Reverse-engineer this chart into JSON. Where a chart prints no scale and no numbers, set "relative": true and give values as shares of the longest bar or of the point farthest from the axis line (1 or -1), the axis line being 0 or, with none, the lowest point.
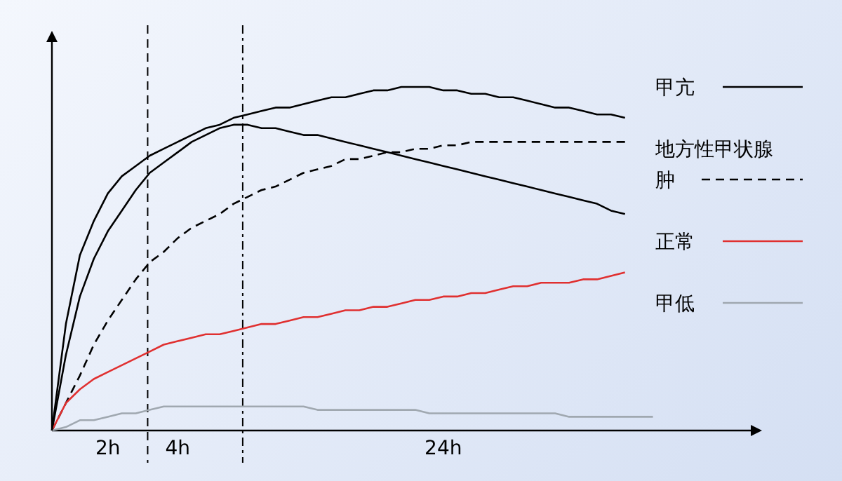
{
  "chart_data": {
    "type": "line",
    "relative": true,
    "categories": [
      null,
      null,
      null,
      null,
      "2h",
      null,
      null,
      null,
      null,
      "4h",
      null,
      null,
      null,
      null,
      null,
      null,
      null,
      null,
      null,
      null,
      null,
      null,
      null,
      null,
      null,
      null,
      null,
      null,
      "24h",
      null,
      null,
      null,
      null,
      null,
      null,
      null,
      null,
      null,
      null,
      null,
      null,
      null,
      null,
      null,
      null,
      null,
      null,
      null,
      null,
      null,
      null
    ],
    "legend": "right",
    "series": [
      {
        "name": "甲亢",
        "color": "#000000",
        "line_style": "solid",
        "values": [
          0,
          0.22,
          0.39,
          0.5,
          0.58,
          0.64,
          0.7,
          0.75,
          0.78,
          0.81,
          0.84,
          0.86,
          0.88,
          0.89,
          0.89,
          0.88,
          0.88,
          0.87,
          0.86,
          0.86,
          0.85,
          0.84,
          0.83,
          0.82,
          0.81,
          0.8,
          0.79,
          0.78,
          0.77,
          0.76,
          0.75,
          0.74,
          0.73,
          0.72,
          0.71,
          0.7,
          0.69,
          0.68,
          0.67,
          0.66,
          0.64,
          0.63,
          null,
          null,
          null,
          null,
          null,
          null,
          null,
          null,
          null
        ]
      },
      {
        "name": "地方性甲状腺肿",
        "color": "#000000",
        "line_style": "dashed",
        "values": [
          0,
          0.08,
          0.16,
          0.25,
          0.32,
          0.38,
          0.44,
          0.49,
          0.52,
          0.56,
          0.59,
          0.61,
          0.63,
          0.66,
          0.68,
          0.7,
          0.71,
          0.73,
          0.75,
          0.76,
          0.77,
          0.79,
          0.79,
          0.8,
          0.81,
          0.81,
          0.82,
          0.82,
          0.83,
          0.83,
          0.84,
          0.84,
          0.84,
          0.84,
          0.84,
          0.84,
          0.84,
          0.84,
          0.84,
          0.84,
          0.84,
          0.84,
          null,
          null,
          null,
          null,
          null,
          null,
          null,
          null,
          null
        ]
      },
      {
        "name": "正常",
        "color": "#e03030",
        "line_style": "solid",
        "values": [
          0,
          0.08,
          0.12,
          0.15,
          0.17,
          0.19,
          0.21,
          0.23,
          0.25,
          0.26,
          0.27,
          0.28,
          0.28,
          0.29,
          0.3,
          0.31,
          0.31,
          0.32,
          0.33,
          0.33,
          0.34,
          0.35,
          0.35,
          0.36,
          0.36,
          0.37,
          0.38,
          0.38,
          0.39,
          0.39,
          0.4,
          0.4,
          0.41,
          0.42,
          0.42,
          0.43,
          0.43,
          0.43,
          0.44,
          0.44,
          0.45,
          0.46,
          null,
          null,
          null,
          null,
          null,
          null,
          null,
          null,
          null
        ]
      },
      {
        "name": "甲低",
        "color": "#a0a8b0",
        "line_style": "solid",
        "values": [
          0,
          0.01,
          0.03,
          0.03,
          0.04,
          0.05,
          0.05,
          0.06,
          0.07,
          0.07,
          0.07,
          0.07,
          0.07,
          0.07,
          0.07,
          0.07,
          0.07,
          0.07,
          0.07,
          0.06,
          0.06,
          0.06,
          0.06,
          0.06,
          0.06,
          0.06,
          0.06,
          0.05,
          0.05,
          0.05,
          0.05,
          0.05,
          0.05,
          0.05,
          0.05,
          0.05,
          0.05,
          0.04,
          0.04,
          0.04,
          0.04,
          0.04,
          0.04,
          0.04,
          null,
          null,
          null,
          null,
          null,
          null,
          null
        ]
      },
      {
        "color": "#000000",
        "line_style": "solid",
        "values": [
          0,
          0.31,
          0.51,
          0.61,
          0.69,
          0.74,
          0.77,
          0.8,
          0.82,
          0.84,
          0.86,
          0.88,
          0.89,
          0.91,
          0.92,
          0.93,
          0.94,
          0.94,
          0.95,
          0.96,
          0.97,
          0.97,
          0.98,
          0.99,
          0.99,
          1,
          1,
          1,
          0.99,
          0.99,
          0.98,
          0.98,
          0.97,
          0.97,
          0.96,
          0.95,
          0.94,
          0.94,
          0.93,
          0.92,
          0.92,
          0.91,
          null,
          null,
          null,
          null,
          null,
          null,
          null,
          null,
          null
        ]
      }
    ]
  }
}
